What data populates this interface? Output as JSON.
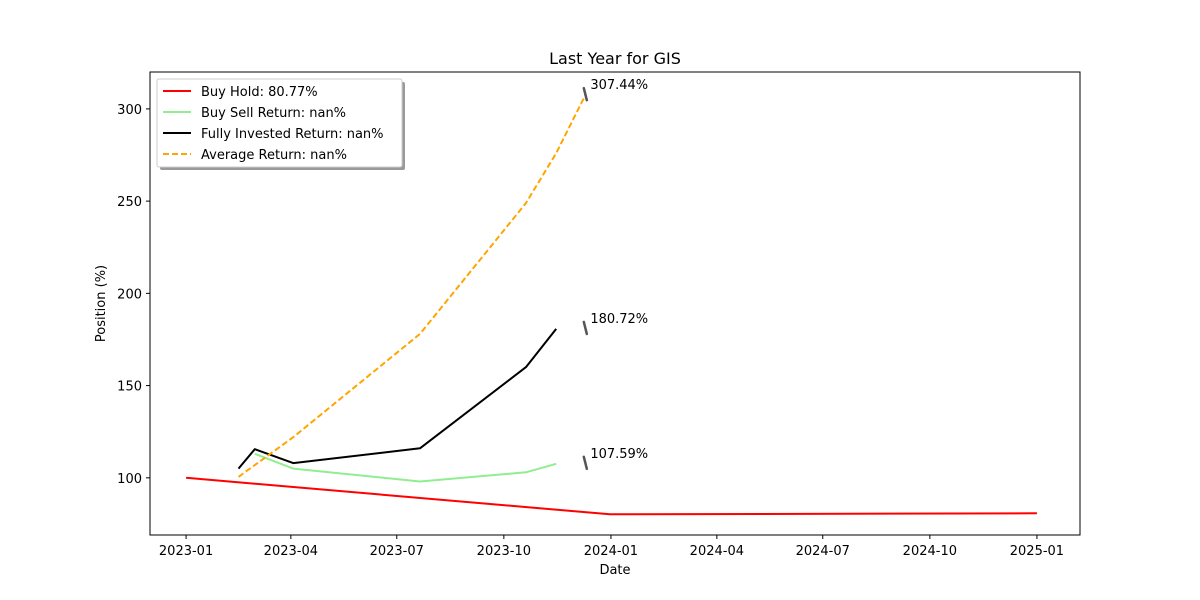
{
  "chart_data": {
    "type": "line",
    "title": "Last Year for GIS",
    "xlabel": "Date",
    "ylabel": "Position (%)",
    "xlim": [
      "2022-12-01",
      "2025-02-07"
    ],
    "ylim": [
      69,
      320
    ],
    "x_ticks": [
      "2023-01",
      "2023-04",
      "2023-07",
      "2023-10",
      "2024-01",
      "2024-04",
      "2024-07",
      "2024-10",
      "2025-01"
    ],
    "y_ticks": [
      100,
      150,
      200,
      250,
      300
    ],
    "grid": false,
    "legend_position": "top-left",
    "series": [
      {
        "name": "Buy Hold: 80.77%",
        "color": "#ff0000",
        "dash": "solid",
        "points": [
          [
            "2023-01-01",
            100
          ],
          [
            "2023-12-31",
            80.2
          ],
          [
            "2025-01-01",
            80.77
          ]
        ]
      },
      {
        "name": "Buy Sell Return: nan%",
        "color": "#90ee90",
        "dash": "solid",
        "points": [
          [
            "2023-03-01",
            113
          ],
          [
            "2023-04-03",
            105
          ],
          [
            "2023-07-21",
            98
          ],
          [
            "2023-10-20",
            103
          ],
          [
            "2023-11-15",
            107.59
          ]
        ]
      },
      {
        "name": "Fully Invested Return: nan%",
        "color": "#000000",
        "dash": "solid",
        "points": [
          [
            "2023-02-15",
            105
          ],
          [
            "2023-03-01",
            115.5
          ],
          [
            "2023-04-03",
            108
          ],
          [
            "2023-07-21",
            116
          ],
          [
            "2023-10-20",
            160
          ],
          [
            "2023-11-15",
            180.72
          ]
        ]
      },
      {
        "name": "Average Return: nan%",
        "color": "#ffa500",
        "dash": "dashed",
        "points": [
          [
            "2023-02-15",
            100.5
          ],
          [
            "2023-04-03",
            122
          ],
          [
            "2023-07-21",
            178
          ],
          [
            "2023-10-20",
            249
          ],
          [
            "2023-11-15",
            276
          ],
          [
            "2023-12-10",
            307.44
          ]
        ]
      }
    ],
    "annotations": [
      {
        "text": "307.44%",
        "x": "2023-12-10",
        "y": 307.44
      },
      {
        "text": "180.72%",
        "x": "2023-12-10",
        "y": 180.72
      },
      {
        "text": "107.59%",
        "x": "2023-12-10",
        "y": 107.59
      }
    ]
  }
}
